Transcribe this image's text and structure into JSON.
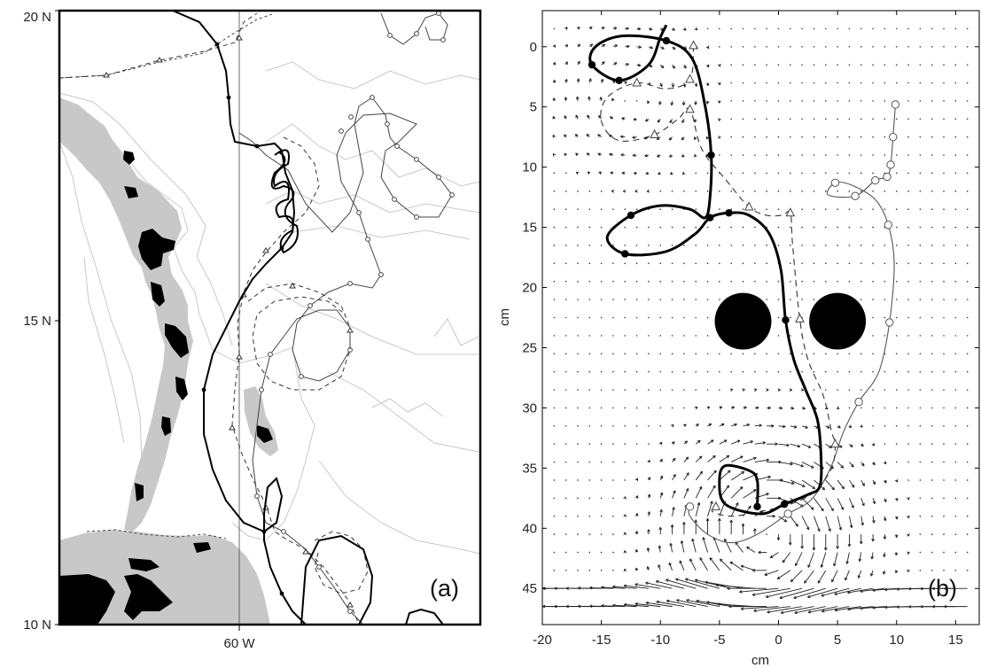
{
  "figure": {
    "panel_a_label": "(a)",
    "panel_b_label": "(b)"
  },
  "chart_data": [
    {
      "type": "map",
      "panel": "(a)",
      "y_ticks": [
        "20 N",
        "15 N",
        "10 N"
      ],
      "x_ticks": [
        "60 W"
      ],
      "lat_range": [
        10,
        20
      ],
      "land_colors": {
        "islands": "#000000",
        "shelf": "#c8c8c8",
        "contours": "#c8c8c8"
      },
      "trajectories": [
        {
          "style": "thick-solid",
          "marker": "filled-dot"
        },
        {
          "style": "dashed",
          "marker": "triangle"
        },
        {
          "style": "thin-solid",
          "marker": "open-circle"
        }
      ]
    },
    {
      "type": "scatter",
      "panel": "(b)",
      "xlabel": "cm",
      "ylabel": "cm",
      "xlim": [
        -20,
        17
      ],
      "ylim": [
        48,
        -3
      ],
      "x_ticks": [
        -20,
        -15,
        -10,
        -5,
        0,
        5,
        10,
        15
      ],
      "y_ticks": [
        0,
        5,
        10,
        15,
        20,
        25,
        30,
        35,
        40,
        45
      ],
      "obstacles": [
        {
          "x": -3,
          "y": 22.8,
          "r": 2.4
        },
        {
          "x": 5,
          "y": 22.8,
          "r": 2.4
        }
      ],
      "series": [
        {
          "style": "thick-solid",
          "marker": "filled-dot",
          "x": [
            -9.5,
            -10,
            -11,
            -13.5,
            -15.8,
            -15.5,
            -13.2,
            -9.5,
            -7.3,
            -6.2,
            -5.7,
            -5.8,
            -6.2,
            -7.5,
            -10,
            -12.5,
            -14.5,
            -13,
            -9.5,
            -7,
            -5.8,
            -4.2,
            -2.5,
            -0.8,
            0.2,
            0.6,
            1.3,
            2.3,
            3.3,
            3.6,
            3.5,
            2.5,
            0.5,
            -1.5,
            -4.5,
            -5,
            -4.5,
            -2.5,
            -1.8,
            -1.8
          ],
          "y": [
            -1.8,
            -0.8,
            1.5,
            2.8,
            1.5,
            0,
            -0.9,
            -0.5,
            1,
            5,
            9,
            12.5,
            14.2,
            13.5,
            13.2,
            14,
            15.8,
            17.2,
            17,
            15.5,
            14.2,
            13.8,
            14,
            15.5,
            18.5,
            22.7,
            26,
            28.5,
            31,
            34,
            36.5,
            37.2,
            38,
            38.8,
            38,
            36,
            34.8,
            35.2,
            36,
            38.2
          ],
          "markers_at": [
            3,
            4,
            7,
            10,
            15,
            17,
            20,
            21,
            25,
            32,
            39
          ]
        },
        {
          "style": "dashed",
          "marker": "triangle",
          "x": [
            -7.2,
            -7.5,
            -9.5,
            -12,
            -14.5,
            -15,
            -13.5,
            -10.5,
            -8.5,
            -7.5,
            -6.5,
            -4.5,
            -2.5,
            -1,
            0.3,
            1,
            1.2,
            1.8,
            2.5,
            3.8,
            4.5,
            4.8,
            4.5,
            3,
            1,
            -1.5,
            -4,
            -5.6,
            -5.3
          ],
          "y": [
            -0.1,
            2.7,
            3.5,
            3,
            4.2,
            6.2,
            7.8,
            7.3,
            6,
            5.2,
            8.5,
            11,
            13.3,
            14,
            14,
            13.8,
            16.5,
            22.6,
            26,
            29,
            32,
            33,
            35,
            37,
            38,
            38.6,
            39,
            38.6,
            38.2
          ],
          "markers_at": [
            0,
            1,
            3,
            7,
            9,
            12,
            15,
            17,
            21,
            28
          ]
        },
        {
          "style": "thin-solid",
          "marker": "open-circle",
          "x": [
            9.9,
            9.7,
            9.5,
            9.2,
            8.2,
            6.5,
            4.2,
            4.8,
            6.2,
            8.2,
            9.3,
            9.8,
            9.4,
            8.5,
            6.8,
            5.5,
            4.4,
            2.8,
            0.8,
            -1.8,
            -4,
            -6,
            -7.5,
            -7.5
          ],
          "y": [
            4.8,
            7.5,
            9.8,
            10.8,
            11.1,
            12.4,
            12.3,
            11.3,
            11.5,
            12.7,
            14.8,
            18,
            22.9,
            27,
            29.5,
            32,
            35,
            37.6,
            38.8,
            40.5,
            41.2,
            40.5,
            39,
            38.2
          ],
          "markers_at": [
            0,
            1,
            2,
            3,
            4,
            5,
            7,
            10,
            12,
            14,
            18,
            23
          ]
        }
      ]
    }
  ]
}
